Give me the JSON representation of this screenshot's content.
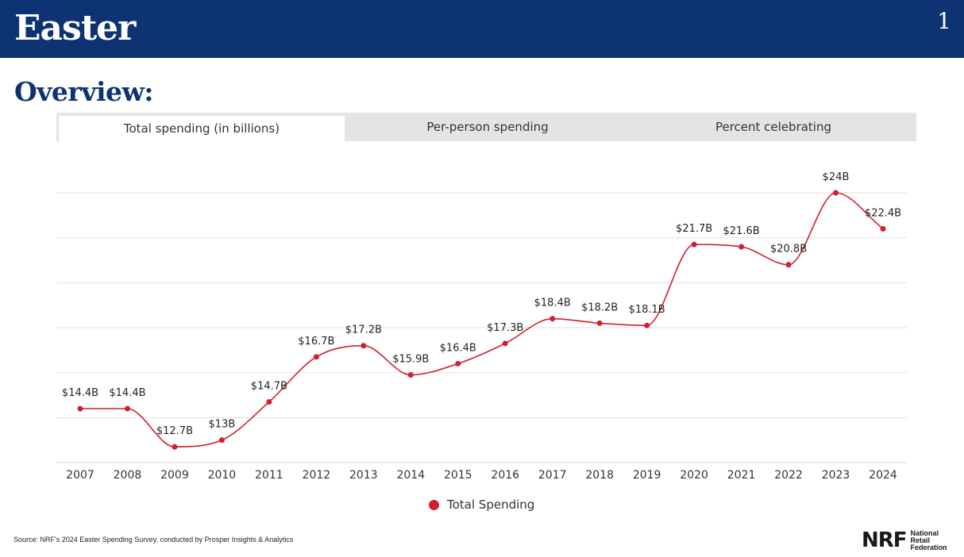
{
  "header": {
    "title": "Easter",
    "page_number": "1"
  },
  "section_title": "Overview:",
  "tabs": [
    {
      "label": "Total spending (in billions)",
      "active": true
    },
    {
      "label": "Per-person spending",
      "active": false
    },
    {
      "label": "Percent celebrating",
      "active": false
    }
  ],
  "colors": {
    "accent": "#0e3373",
    "series": "#d0202c",
    "grid": "#e2e2e2"
  },
  "chart_data": {
    "type": "line",
    "title": "",
    "xlabel": "",
    "ylabel": "",
    "categories": [
      "2007",
      "2008",
      "2009",
      "2010",
      "2011",
      "2012",
      "2013",
      "2014",
      "2015",
      "2016",
      "2017",
      "2018",
      "2019",
      "2020",
      "2021",
      "2022",
      "2023",
      "2024"
    ],
    "series": [
      {
        "name": "Total Spending",
        "values": [
          14.4,
          14.4,
          12.7,
          13.0,
          14.7,
          16.7,
          17.2,
          15.9,
          16.4,
          17.3,
          18.4,
          18.2,
          18.1,
          21.7,
          21.6,
          20.8,
          24.0,
          22.4
        ],
        "labels": [
          "$14.4B",
          "$14.4B",
          "$12.7B",
          "$13B",
          "$14.7B",
          "$16.7B",
          "$17.2B",
          "$15.9B",
          "$16.4B",
          "$17.3B",
          "$18.4B",
          "$18.2B",
          "$18.1B",
          "$21.7B",
          "$21.6B",
          "$20.8B",
          "$24B",
          "$22.4B"
        ]
      }
    ],
    "ylim": [
      12,
      24
    ],
    "grid": true,
    "legend": "bottom-center"
  },
  "legend": {
    "label": "Total Spending"
  },
  "source": "Source: NRF's 2024 Easter Spending Survey, conducted by Prosper Insights & Analytics",
  "logo": {
    "mark": "NRF",
    "line1": "National",
    "line2": "Retail",
    "line3": "Federation"
  }
}
